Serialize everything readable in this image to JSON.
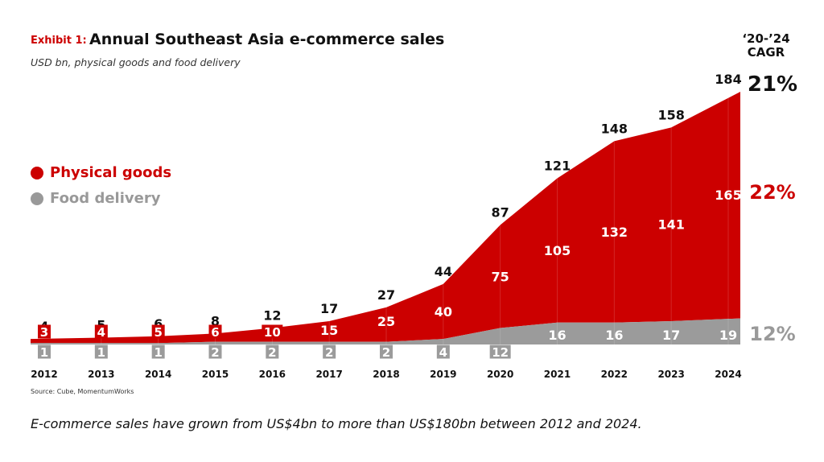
{
  "header": {
    "exhibit_label": "Exhibit 1:",
    "title": "Annual Southeast Asia e-commerce sales",
    "subtitle": "USD bn, physical goods and food delivery"
  },
  "cagr": {
    "header_line1": "‘20-’24",
    "header_line2": "CAGR",
    "total": "21%",
    "physical_goods": "22%",
    "food_delivery": "12%"
  },
  "legend": [
    {
      "label": "Physical goods",
      "color": "#cc0000"
    },
    {
      "label": "Food delivery",
      "color": "#999999"
    }
  ],
  "source": "Source: Cube, MomentumWorks",
  "footnote": "E-commerce sales have grown from US$4bn to more than US$180bn between 2012 and 2024.",
  "colors": {
    "physical_goods": "#cc0000",
    "food_delivery": "#9b9b9b",
    "total_label": "#111111",
    "cagr_food": "#999999"
  },
  "chart_data": {
    "type": "area",
    "stacked": true,
    "title": "Annual Southeast Asia e-commerce sales",
    "subtitle": "USD bn, physical goods and food delivery",
    "xlabel": "",
    "ylabel": "USD bn",
    "categories": [
      "2012",
      "2013",
      "2014",
      "2015",
      "2016",
      "2017",
      "2018",
      "2019",
      "2020",
      "2021",
      "2022",
      "2023",
      "2024"
    ],
    "series": [
      {
        "name": "Food delivery",
        "values": [
          1,
          1,
          1,
          2,
          2,
          2,
          2,
          4,
          12,
          16,
          16,
          17,
          19
        ]
      },
      {
        "name": "Physical goods",
        "values": [
          3,
          4,
          5,
          6,
          10,
          15,
          25,
          40,
          75,
          105,
          132,
          141,
          165
        ]
      }
    ],
    "totals": [
      4,
      5,
      6,
      8,
      12,
      17,
      27,
      44,
      87,
      121,
      148,
      158,
      184
    ],
    "ylim": [
      0,
      184
    ],
    "grid": false,
    "legend_position": "left"
  }
}
